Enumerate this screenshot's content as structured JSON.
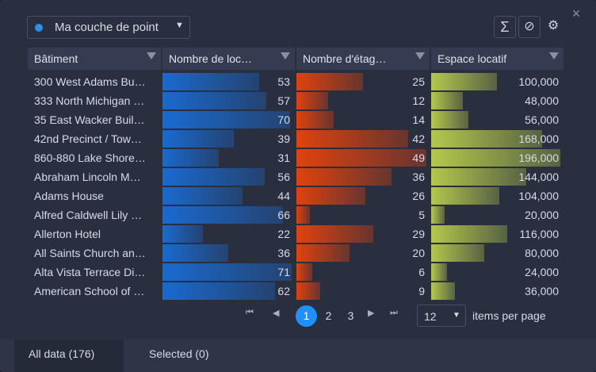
{
  "layer_selector": "Ma couche de point",
  "table": {
    "columns": [
      {
        "label": "Bâtiment"
      },
      {
        "label": "Nombre de loc…",
        "bar_color": "#1a6ad0"
      },
      {
        "label": "Nombre d'étag…",
        "bar_color": "#e0420e"
      },
      {
        "label": "Espace locatif",
        "bar_color": "#b4c84c"
      }
    ],
    "rows": [
      [
        "300 West Adams Bu…",
        53,
        25,
        {
          "value": 100000,
          "label": "100,000"
        }
      ],
      [
        "333 North Michigan …",
        57,
        12,
        {
          "value": 48000,
          "label": "48,000"
        }
      ],
      [
        "35 East Wacker Buil…",
        70,
        14,
        {
          "value": 56000,
          "label": "56,000"
        }
      ],
      [
        "42nd Precinct / Tow…",
        39,
        42,
        {
          "value": 168000,
          "label": "168,000"
        }
      ],
      [
        "860-880 Lake Shore…",
        31,
        49,
        {
          "value": 196000,
          "label": "196,000"
        }
      ],
      [
        "Abraham Lincoln M…",
        56,
        36,
        {
          "value": 144000,
          "label": "144,000"
        }
      ],
      [
        "Adams House",
        44,
        26,
        {
          "value": 104000,
          "label": "104,000"
        }
      ],
      [
        "Alfred Caldwell Lily …",
        66,
        5,
        {
          "value": 20000,
          "label": "20,000"
        }
      ],
      [
        "Allerton Hotel",
        22,
        29,
        {
          "value": 116000,
          "label": "116,000"
        }
      ],
      [
        "All Saints Church an…",
        36,
        20,
        {
          "value": 80000,
          "label": "80,000"
        }
      ],
      [
        "Alta Vista Terrace Di…",
        71,
        6,
        {
          "value": 24000,
          "label": "24,000"
        }
      ],
      [
        "American School of …",
        62,
        9,
        {
          "value": 36000,
          "label": "36,000"
        }
      ]
    ]
  },
  "pagination": {
    "pages": [
      1,
      2,
      3
    ],
    "current": 1,
    "page_size": 12,
    "page_size_label": "items per page"
  },
  "tabs": [
    "All data (176)",
    "Selected (0)"
  ]
}
